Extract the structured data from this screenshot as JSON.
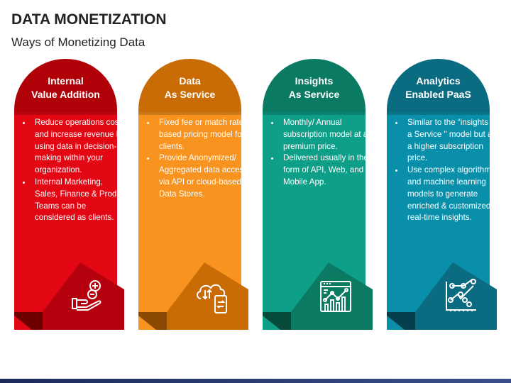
{
  "title": "DATA MONETIZATION",
  "subtitle": "Ways of Monetizing Data",
  "cards": [
    {
      "title_line1": "Internal",
      "title_line2": "Value Addition",
      "icon": "hand-plus-minus-icon",
      "colors": {
        "header": "#b00008",
        "body": "#e30613",
        "fold": "#b5000d",
        "dark": "#6e0000"
      },
      "bullets": [
        "Reduce operations costs and increase revenue by using data in decision-making within your organization.",
        "Internal Marketing, Sales, Finance & Product Teams can be considered as clients."
      ]
    },
    {
      "title_line1": "Data",
      "title_line2": "As Service",
      "icon": "cloud-sync-mobile-icon",
      "colors": {
        "header": "#c96c06",
        "body": "#f7931e",
        "fold": "#c96c06",
        "dark": "#8a4800"
      },
      "bullets": [
        "Fixed fee or match rate-based pricing model for clients.",
        "Provide Anonymized/ Aggregated data access via API or cloud-based Data Stores."
      ]
    },
    {
      "title_line1": "Insights",
      "title_line2": "As Service",
      "icon": "dashboard-chart-icon",
      "colors": {
        "header": "#0b7a63",
        "body": "#0e9f88",
        "fold": "#0b7a63",
        "dark": "#054a3b"
      },
      "bullets": [
        "Monthly/ Annual subscription model at a premium price.",
        "Delivered usually in the form of API, Web, and Mobile App."
      ]
    },
    {
      "title_line1": "Analytics",
      "title_line2": "Enabled PaaS",
      "icon": "line-graph-icon",
      "colors": {
        "header": "#0b6b80",
        "body": "#0a8faa",
        "fold": "#0b6b80",
        "dark": "#053f4d"
      },
      "bullets": [
        "Similar to the “insights as a Service \" model but at a higher subscription price.",
        "Use complex algorithms and machine learning models to generate enriched & customized real-time insights."
      ]
    }
  ]
}
